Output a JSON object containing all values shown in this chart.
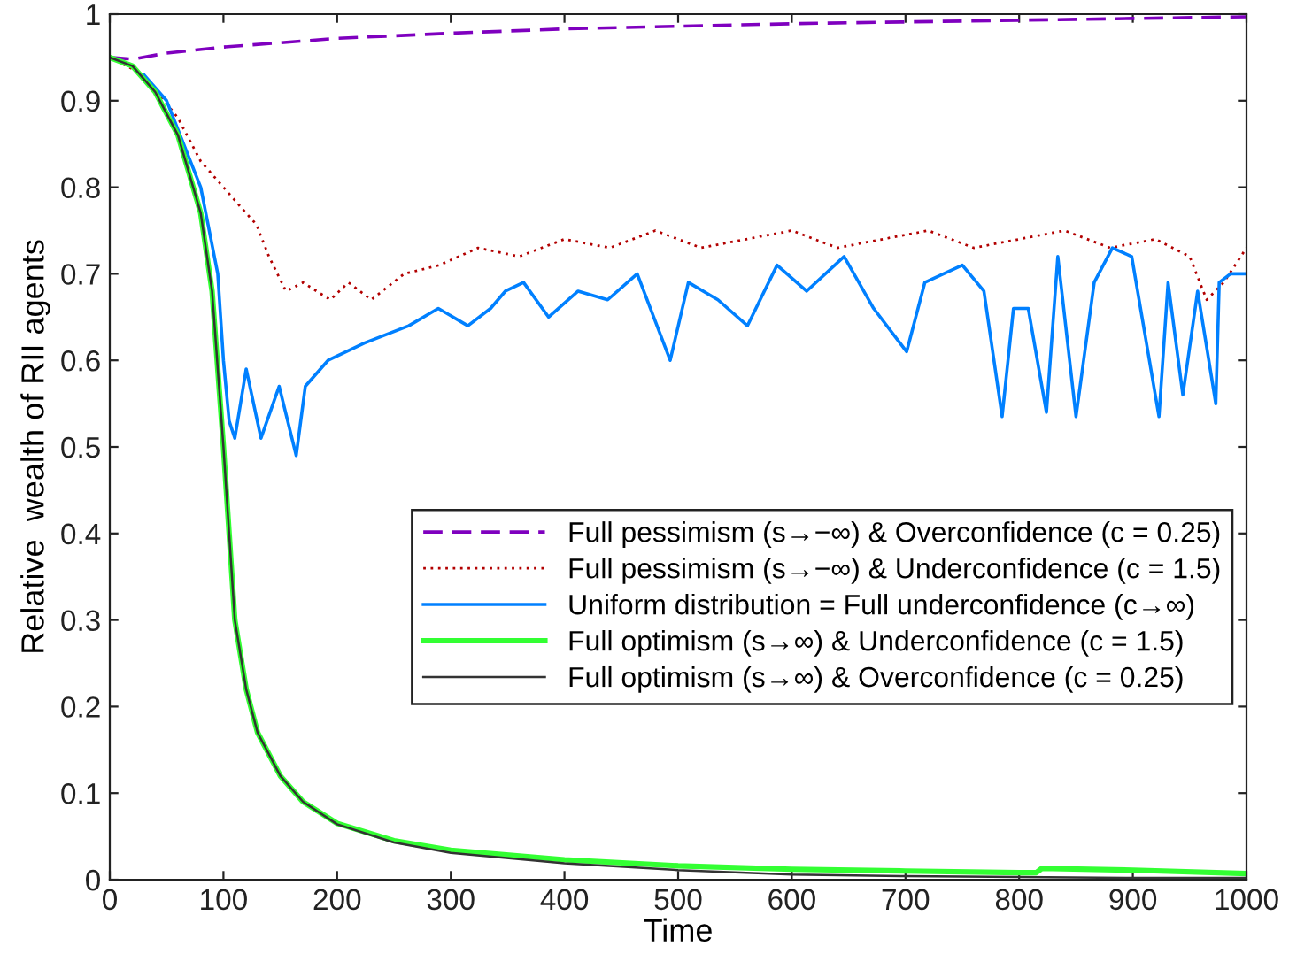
{
  "chart_data": {
    "type": "line",
    "xlabel": "Time",
    "ylabel": "Relative  wealth of RII agents",
    "xlim": [
      0,
      1000
    ],
    "ylim": [
      0,
      1
    ],
    "xticks": [
      0,
      100,
      200,
      300,
      400,
      500,
      600,
      700,
      800,
      900,
      1000
    ],
    "yticks": [
      0,
      0.1,
      0.2,
      0.3,
      0.4,
      0.5,
      0.6,
      0.7,
      0.8,
      0.9,
      1
    ],
    "grid": false,
    "legend": "right",
    "series": [
      {
        "name": "Full pessimism (s→−∞) & Overconfidence (c = 0.25)",
        "color": "#7f00bf",
        "line_style": "dashed",
        "x": [
          0,
          20,
          50,
          100,
          200,
          300,
          400,
          500,
          600,
          700,
          800,
          900,
          1000
        ],
        "values": [
          0.95,
          0.948,
          0.955,
          0.962,
          0.972,
          0.978,
          0.983,
          0.986,
          0.989,
          0.991,
          0.993,
          0.995,
          0.997
        ]
      },
      {
        "name": "Full pessimism (s→−∞) & Underconfidence (c = 1.5)",
        "color": "#b20000",
        "line_style": "dotted",
        "x": [
          0,
          30,
          60,
          80,
          100,
          120,
          129,
          140,
          155,
          170,
          194,
          210,
          230,
          259,
          290,
          324,
          360,
          400,
          440,
          480,
          520,
          560,
          600,
          640,
          680,
          720,
          760,
          800,
          840,
          880,
          920,
          950,
          965,
          980,
          1000
        ],
        "values": [
          0.95,
          0.93,
          0.88,
          0.83,
          0.8,
          0.77,
          0.757,
          0.72,
          0.68,
          0.69,
          0.67,
          0.69,
          0.67,
          0.7,
          0.71,
          0.73,
          0.72,
          0.74,
          0.73,
          0.75,
          0.73,
          0.74,
          0.75,
          0.73,
          0.74,
          0.75,
          0.73,
          0.74,
          0.75,
          0.73,
          0.74,
          0.72,
          0.67,
          0.69,
          0.73
        ]
      },
      {
        "name": "Uniform distribution = Full underconfidence (c→∞)",
        "color": "#0080ff",
        "line_style": "solid",
        "x": [
          30,
          50,
          80,
          95,
          100,
          105,
          110,
          120,
          133,
          149,
          164,
          172,
          192,
          224,
          263,
          289,
          315,
          335,
          348,
          364,
          386,
          412,
          438,
          464,
          493,
          509,
          535,
          561,
          587,
          613,
          646,
          672,
          701,
          717,
          750,
          769,
          785,
          795,
          808,
          824,
          834,
          850,
          866,
          882,
          899,
          923,
          931,
          944,
          957,
          973,
          976,
          986,
          1000
        ],
        "values": [
          0.93,
          0.9,
          0.8,
          0.7,
          0.6,
          0.53,
          0.51,
          0.59,
          0.51,
          0.57,
          0.49,
          0.57,
          0.6,
          0.62,
          0.64,
          0.66,
          0.64,
          0.66,
          0.68,
          0.69,
          0.65,
          0.68,
          0.67,
          0.7,
          0.6,
          0.69,
          0.67,
          0.64,
          0.71,
          0.68,
          0.72,
          0.66,
          0.61,
          0.69,
          0.71,
          0.68,
          0.535,
          0.66,
          0.66,
          0.54,
          0.72,
          0.535,
          0.69,
          0.73,
          0.72,
          0.535,
          0.69,
          0.56,
          0.68,
          0.55,
          0.69,
          0.7,
          0.7
        ]
      },
      {
        "name": "Full optimism (s→∞) & Underconfidence (c = 1.5)",
        "color": "#33ff33",
        "line_style": "solid",
        "x": [
          0,
          20,
          40,
          60,
          80,
          90,
          100,
          105,
          110,
          120,
          130,
          150,
          170,
          200,
          250,
          300,
          400,
          500,
          600,
          700,
          800,
          815,
          820,
          900,
          1000
        ],
        "values": [
          0.95,
          0.94,
          0.91,
          0.86,
          0.77,
          0.68,
          0.5,
          0.4,
          0.3,
          0.22,
          0.17,
          0.12,
          0.09,
          0.065,
          0.045,
          0.034,
          0.023,
          0.016,
          0.012,
          0.01,
          0.008,
          0.008,
          0.013,
          0.011,
          0.007
        ]
      },
      {
        "name": "Full optimism (s→∞) & Overconfidence (c = 0.25)",
        "color": "#333333",
        "line_style": "solid",
        "x": [
          0,
          20,
          40,
          60,
          80,
          90,
          100,
          105,
          110,
          120,
          130,
          150,
          170,
          200,
          250,
          300,
          400,
          500,
          600,
          700,
          800,
          900,
          1000
        ],
        "values": [
          0.95,
          0.94,
          0.91,
          0.86,
          0.77,
          0.68,
          0.5,
          0.4,
          0.3,
          0.22,
          0.17,
          0.12,
          0.09,
          0.064,
          0.043,
          0.031,
          0.019,
          0.011,
          0.006,
          0.004,
          0.003,
          0.002,
          0.002
        ]
      }
    ]
  }
}
